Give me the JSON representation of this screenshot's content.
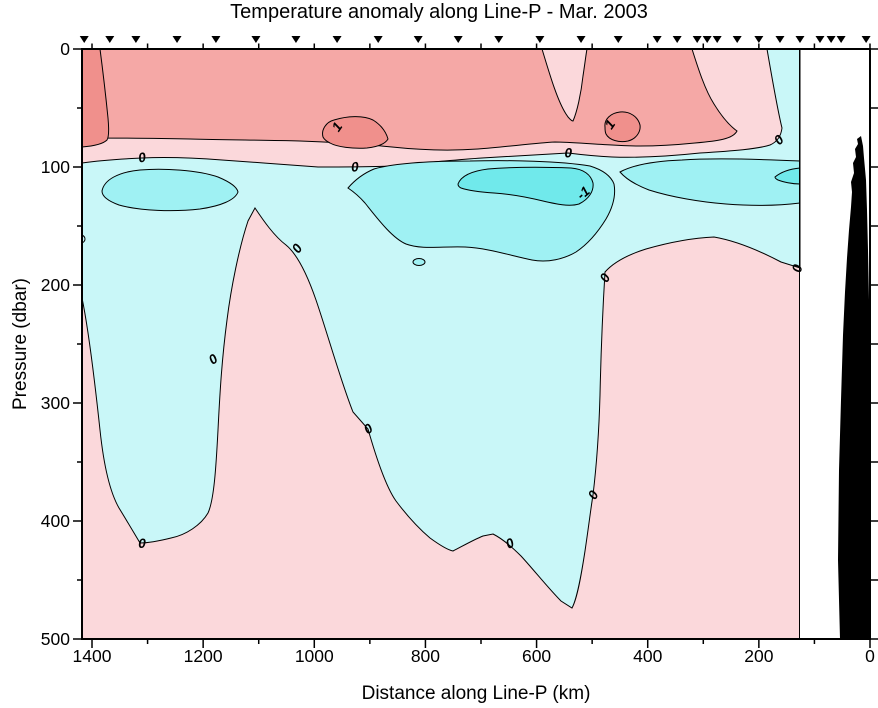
{
  "title": "Temperature anomaly along Line-P - Mar. 2003",
  "axes": {
    "x": {
      "label": "Distance along Line-P (km)",
      "range_km": [
        1418,
        0
      ],
      "major_ticks": [
        {
          "km": 1400,
          "label": "1400"
        },
        {
          "km": 1200,
          "label": "1200"
        },
        {
          "km": 1000,
          "label": "1000"
        },
        {
          "km": 800,
          "label": "800"
        },
        {
          "km": 600,
          "label": "600"
        },
        {
          "km": 400,
          "label": "400"
        },
        {
          "km": 200,
          "label": "200"
        },
        {
          "km": 0,
          "label": "0"
        }
      ],
      "minor_ticks_km": [
        1300,
        1100,
        900,
        700,
        500,
        300,
        100
      ]
    },
    "y": {
      "label": "Pressure (dbar)",
      "range_dbar": [
        0,
        500
      ],
      "major_ticks": [
        {
          "dbar": 0,
          "label": "0"
        },
        {
          "dbar": 100,
          "label": "100"
        },
        {
          "dbar": 200,
          "label": "200"
        },
        {
          "dbar": 300,
          "label": "300"
        },
        {
          "dbar": 400,
          "label": "400"
        },
        {
          "dbar": 500,
          "label": "500"
        }
      ],
      "minor_ticks_dbar": [
        50,
        150,
        250,
        350,
        450
      ]
    }
  },
  "station_markers_km": [
    1414,
    1368,
    1321,
    1247,
    1177,
    1105,
    1033,
    959,
    885,
    813,
    741,
    668,
    594,
    520,
    453,
    383,
    347,
    311,
    293,
    275,
    239,
    200,
    162,
    126,
    90,
    70,
    52,
    7
  ],
  "chart_data": {
    "type": "heatmap",
    "subtype": "filled-contour vertical ocean section (ODV style)",
    "title": "Temperature anomaly along Line-P - Mar. 2003",
    "xlabel": "Distance along Line-P (km)",
    "ylabel": "Pressure (dbar)",
    "x_axis_reversed": true,
    "x_range_km": [
      1418,
      0
    ],
    "y_range_dbar": [
      0,
      500
    ],
    "contour_interval": 0.5,
    "levels": [
      {
        "band": "> 1",
        "color": "#F0908C"
      },
      {
        "band": "0.5 to 1",
        "color": "#F5A8A6"
      },
      {
        "band": "0 to 0.5",
        "color": "#FBD8DB"
      },
      {
        "band": "-0.5 to 0",
        "color": "#C9F7F8"
      },
      {
        "band": "-1 to -0.5",
        "color": "#9FF1F3"
      },
      {
        "band": "< -1",
        "color": "#70E9EB"
      }
    ],
    "contour_labels": [
      {
        "value": "0",
        "km": 1310,
        "dbar": 92,
        "rot": -10
      },
      {
        "value": "0",
        "km": 927,
        "dbar": 100,
        "rot": -5
      },
      {
        "value": "0",
        "km": 543,
        "dbar": 88,
        "rot": 0
      },
      {
        "value": "0",
        "km": 164,
        "dbar": 77,
        "rot": -45
      },
      {
        "value": "1",
        "km": 959,
        "dbar": 66,
        "rot": -55
      },
      {
        "value": "1",
        "km": 468,
        "dbar": 64,
        "rot": -55
      },
      {
        "value": "-1",
        "km": 516,
        "dbar": 122,
        "rot": -40
      },
      {
        "value": "0",
        "km": 1031,
        "dbar": 169,
        "rot": -55
      },
      {
        "value": "0",
        "km": 1182,
        "dbar": 263,
        "rot": -35
      },
      {
        "value": "0",
        "km": 1310,
        "dbar": 419,
        "rot": 0
      },
      {
        "value": "0",
        "km": 903,
        "dbar": 322,
        "rot": -35
      },
      {
        "value": "0",
        "km": 648,
        "dbar": 419,
        "rot": -25
      },
      {
        "value": "0",
        "km": 498,
        "dbar": 378,
        "rot": -60
      },
      {
        "value": "0",
        "km": 477,
        "dbar": 194,
        "rot": -60
      },
      {
        "value": "0",
        "km": 131,
        "dbar": 186,
        "rot": -75
      }
    ],
    "features": [
      "Warm anomaly surface layer (0.5 to 1) from the surface to about 80-90 dbar along the whole section",
      "Closed patches exceeding 1 near 960 km and 465 km at 50-80 dbar; strongest warm water at the far offshore surface corner (1390-1418 km, above 80 dbar)",
      "Cold anomaly layer (-0.5 to -1) at about 95-200 dbar; cores below -1 between about 500-740 km at 100-135 dbar and near 130-170 km at 100-115 dbar",
      "Weak cold anomaly (-0.5 to 0) lobes reach about 420 dbar near 1180-1390 km and about 500 dbar near 480-900 km",
      "Weak warm anomaly (0 to 0.5) fills the remaining deep part of the section",
      "Shaded data ends at about 126 km; white gap, then black seafloor/coast silhouette shoaling to about 75 dbar near 0-60 km"
    ],
    "station_markers_km": [
      1414,
      1368,
      1321,
      1247,
      1177,
      1105,
      1033,
      959,
      885,
      813,
      741,
      668,
      594,
      520,
      453,
      383,
      347,
      311,
      293,
      275,
      239,
      200,
      162,
      126,
      90,
      70,
      52,
      7
    ]
  },
  "colors": {
    "background": "#FFFFFF",
    "frame": "#000000",
    "bathymetry": "#000000"
  }
}
